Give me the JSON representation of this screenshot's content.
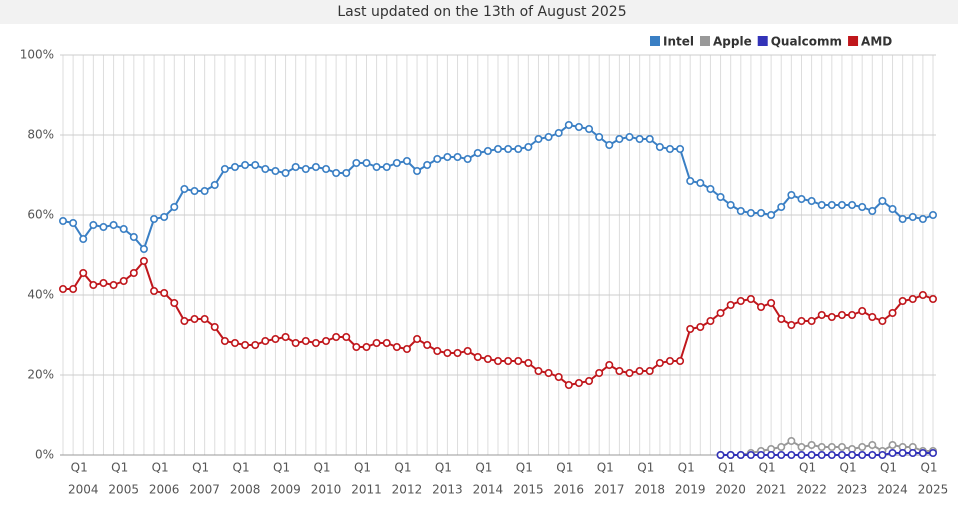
{
  "chart_data": {
    "type": "line",
    "title": "Last updated on the 13th of August 2025",
    "categories": [
      null,
      null,
      "Q1",
      null,
      null,
      null,
      "Q1",
      null,
      null,
      null,
      "Q1",
      null,
      null,
      null,
      "Q1",
      null,
      null,
      null,
      "Q1",
      null,
      null,
      null,
      "Q1",
      null,
      null,
      null,
      "Q1",
      null,
      null,
      null,
      "Q1",
      null,
      null,
      null,
      "Q1",
      null,
      null,
      null,
      "Q1",
      null,
      null,
      null,
      "Q1",
      null,
      null,
      null,
      "Q1",
      null,
      null,
      null,
      "Q1",
      null,
      null,
      null,
      "Q1",
      null,
      null,
      null,
      "Q1",
      null,
      null,
      null,
      "Q1",
      null,
      null,
      null,
      "Q1",
      null,
      null,
      null,
      "Q1",
      null,
      null,
      null,
      "Q1",
      null,
      null,
      null,
      "Q1",
      null,
      null,
      null,
      "Q1",
      null,
      null,
      null,
      "Q1"
    ],
    "year_labels": [
      "2004",
      "2005",
      "2006",
      "2007",
      "2008",
      "2009",
      "2010",
      "2011",
      "2012",
      "2013",
      "2014",
      "2015",
      "2016",
      "2017",
      "2018",
      "2019",
      "2020",
      "2021",
      "2022",
      "2023",
      "2024",
      "2025"
    ],
    "ylim": [
      0,
      100
    ],
    "yticks": [
      {
        "value": 0,
        "label": "0%"
      },
      {
        "value": 20,
        "label": "20%"
      },
      {
        "value": 40,
        "label": "40%"
      },
      {
        "value": 60,
        "label": "60%"
      },
      {
        "value": 80,
        "label": "80%"
      },
      {
        "value": 100,
        "label": "100%"
      }
    ],
    "grid": true,
    "legend": "top-right",
    "series": [
      {
        "name": "Intel",
        "color": "#3a7fc4",
        "values": [
          58.5,
          58,
          54,
          57.5,
          57,
          57.5,
          56.5,
          54.5,
          51.5,
          59,
          59.5,
          62,
          66.5,
          66,
          66,
          67.5,
          71.5,
          72,
          72.5,
          72.5,
          71.5,
          71,
          70.5,
          72,
          71.5,
          72,
          71.5,
          70.5,
          70.5,
          73,
          73,
          72,
          72,
          73,
          73.5,
          71,
          72.5,
          74,
          74.5,
          74.5,
          74,
          75.5,
          76,
          76.5,
          76.5,
          76.5,
          77,
          79,
          79.5,
          80.5,
          82.5,
          82,
          81.5,
          79.5,
          77.5,
          79,
          79.5,
          79,
          79,
          77,
          76.5,
          76.5,
          68.5,
          68,
          66.5,
          64.5,
          62.5,
          61,
          60.5,
          60.5,
          60,
          62,
          65,
          64,
          63.5,
          62.5,
          62.5,
          62.5,
          62.5,
          62,
          61,
          63.5,
          61.5,
          59,
          59.5,
          59,
          60
        ]
      },
      {
        "name": "Apple",
        "color": "#999999",
        "values": [
          null,
          null,
          null,
          null,
          null,
          null,
          null,
          null,
          null,
          null,
          null,
          null,
          null,
          null,
          null,
          null,
          null,
          null,
          null,
          null,
          null,
          null,
          null,
          null,
          null,
          null,
          null,
          null,
          null,
          null,
          null,
          null,
          null,
          null,
          null,
          null,
          null,
          null,
          null,
          null,
          null,
          null,
          null,
          null,
          null,
          null,
          null,
          null,
          null,
          null,
          null,
          null,
          null,
          null,
          null,
          null,
          null,
          null,
          null,
          null,
          null,
          null,
          null,
          null,
          null,
          0,
          0,
          0,
          0.5,
          1,
          1.5,
          2,
          3.5,
          2,
          2.5,
          2,
          2,
          2,
          1.5,
          2,
          2.5,
          1,
          2.5,
          2,
          2,
          1,
          1
        ]
      },
      {
        "name": "Qualcomm",
        "color": "#3333b8",
        "values": [
          null,
          null,
          null,
          null,
          null,
          null,
          null,
          null,
          null,
          null,
          null,
          null,
          null,
          null,
          null,
          null,
          null,
          null,
          null,
          null,
          null,
          null,
          null,
          null,
          null,
          null,
          null,
          null,
          null,
          null,
          null,
          null,
          null,
          null,
          null,
          null,
          null,
          null,
          null,
          null,
          null,
          null,
          null,
          null,
          null,
          null,
          null,
          null,
          null,
          null,
          null,
          null,
          null,
          null,
          null,
          null,
          null,
          null,
          null,
          null,
          null,
          null,
          null,
          null,
          null,
          0,
          0,
          0,
          0,
          0,
          0,
          0,
          0,
          0,
          0,
          0,
          0,
          0,
          0,
          0,
          0,
          0,
          0.5,
          0.5,
          0.5,
          0.5,
          0.5
        ]
      },
      {
        "name": "AMD",
        "color": "#c0171c",
        "values": [
          41.5,
          41.5,
          45.5,
          42.5,
          43,
          42.5,
          43.5,
          45.5,
          48.5,
          41,
          40.5,
          38,
          33.5,
          34,
          34,
          32,
          28.5,
          28,
          27.5,
          27.5,
          28.5,
          29,
          29.5,
          28,
          28.5,
          28,
          28.5,
          29.5,
          29.5,
          27,
          27,
          28,
          28,
          27,
          26.5,
          29,
          27.5,
          26,
          25.5,
          25.5,
          26,
          24.5,
          24,
          23.5,
          23.5,
          23.5,
          23,
          21,
          20.5,
          19.5,
          17.5,
          18,
          18.5,
          20.5,
          22.5,
          21,
          20.5,
          21,
          21,
          23,
          23.5,
          23.5,
          31.5,
          32,
          33.5,
          35.5,
          37.5,
          38.5,
          39,
          37,
          38,
          34,
          32.5,
          33.5,
          33.5,
          35,
          34.5,
          35,
          35,
          36,
          34.5,
          33.5,
          35.5,
          38.5,
          39,
          40,
          39
        ]
      }
    ]
  }
}
